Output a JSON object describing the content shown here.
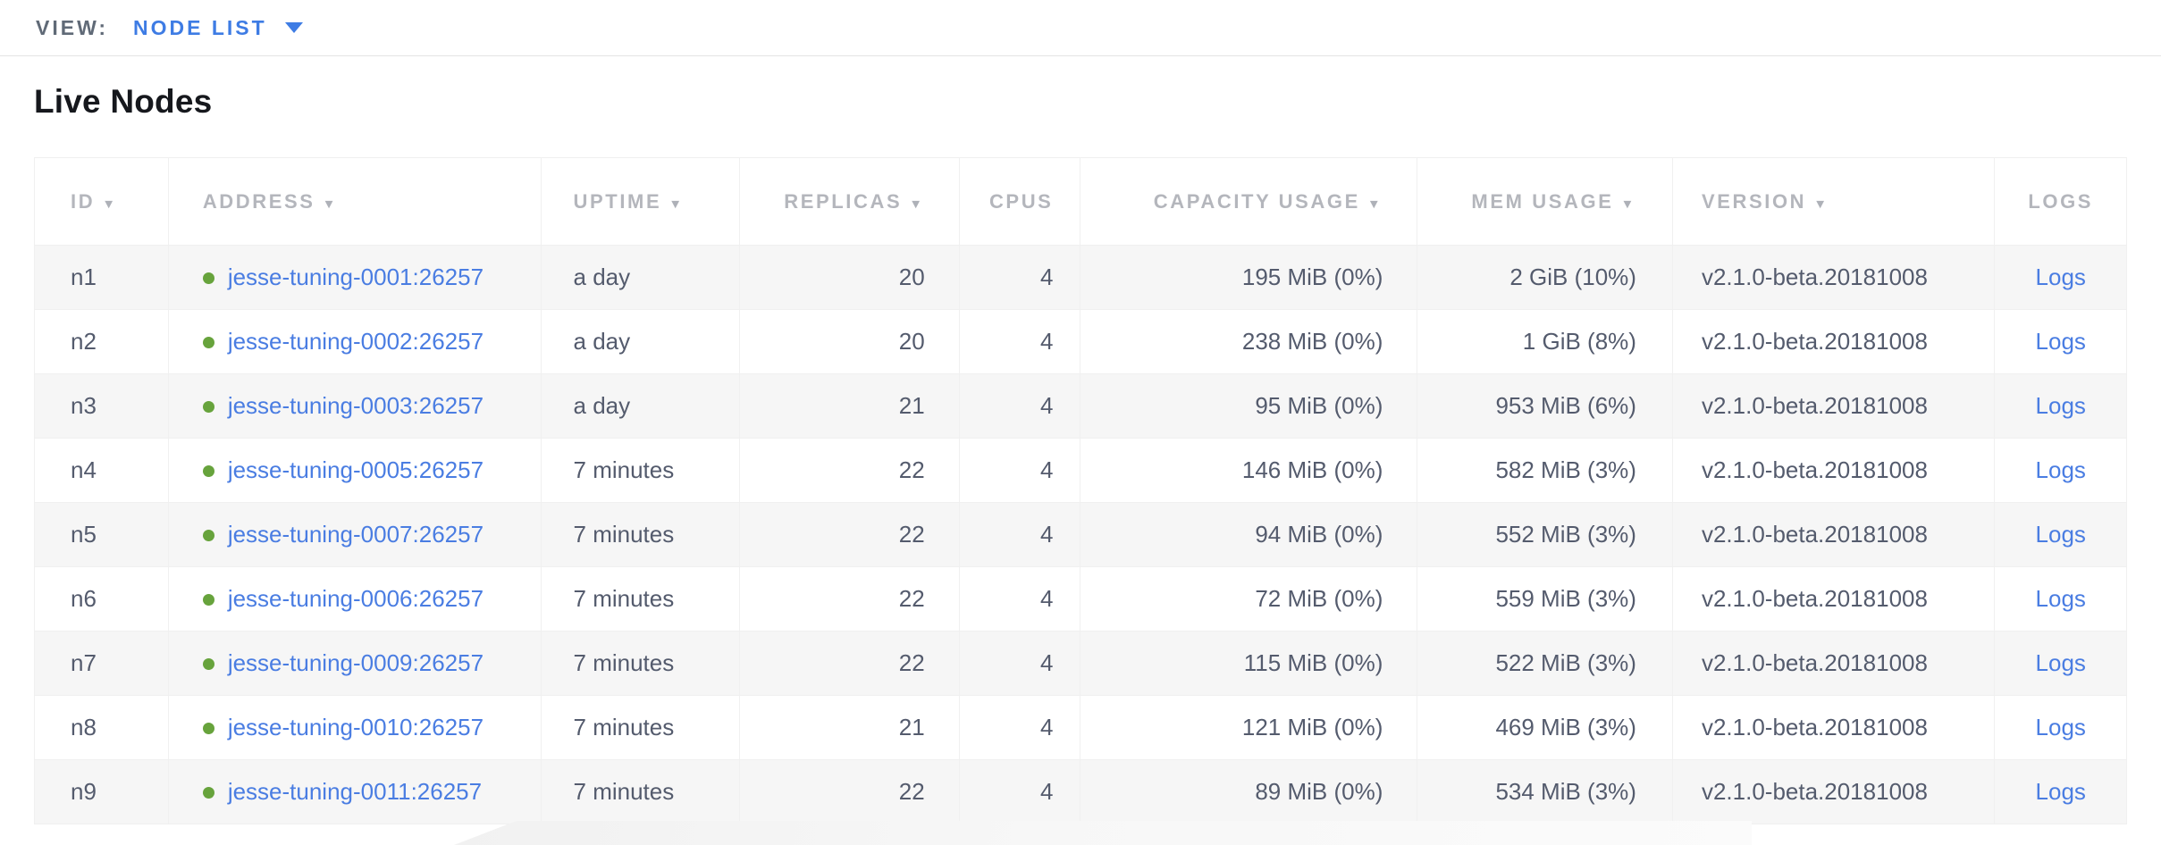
{
  "view_bar": {
    "label": "VIEW:",
    "selected_view": "NODE LIST"
  },
  "page": {
    "title": "Live Nodes"
  },
  "table": {
    "sort_arrow_icon": "▼",
    "columns": [
      {
        "key": "id",
        "label": "ID",
        "sortable": true
      },
      {
        "key": "address",
        "label": "ADDRESS",
        "sortable": true
      },
      {
        "key": "uptime",
        "label": "UPTIME",
        "sortable": true
      },
      {
        "key": "replicas",
        "label": "REPLICAS",
        "sortable": true
      },
      {
        "key": "cpus",
        "label": "CPUS",
        "sortable": false
      },
      {
        "key": "capacity_usage",
        "label": "CAPACITY USAGE",
        "sortable": true
      },
      {
        "key": "mem_usage",
        "label": "MEM USAGE",
        "sortable": true
      },
      {
        "key": "version",
        "label": "VERSION",
        "sortable": true
      },
      {
        "key": "logs",
        "label": "LOGS",
        "sortable": false
      }
    ],
    "rows": [
      {
        "id": "n1",
        "status": "live",
        "address": "jesse-tuning-0001:26257",
        "uptime": "a day",
        "replicas": "20",
        "cpus": "4",
        "capacity_usage": "195 MiB (0%)",
        "mem_usage": "2 GiB (10%)",
        "version": "v2.1.0-beta.20181008",
        "logs": "Logs"
      },
      {
        "id": "n2",
        "status": "live",
        "address": "jesse-tuning-0002:26257",
        "uptime": "a day",
        "replicas": "20",
        "cpus": "4",
        "capacity_usage": "238 MiB (0%)",
        "mem_usage": "1 GiB (8%)",
        "version": "v2.1.0-beta.20181008",
        "logs": "Logs"
      },
      {
        "id": "n3",
        "status": "live",
        "address": "jesse-tuning-0003:26257",
        "uptime": "a day",
        "replicas": "21",
        "cpus": "4",
        "capacity_usage": "95 MiB (0%)",
        "mem_usage": "953 MiB (6%)",
        "version": "v2.1.0-beta.20181008",
        "logs": "Logs"
      },
      {
        "id": "n4",
        "status": "live",
        "address": "jesse-tuning-0005:26257",
        "uptime": "7 minutes",
        "replicas": "22",
        "cpus": "4",
        "capacity_usage": "146 MiB (0%)",
        "mem_usage": "582 MiB (3%)",
        "version": "v2.1.0-beta.20181008",
        "logs": "Logs"
      },
      {
        "id": "n5",
        "status": "live",
        "address": "jesse-tuning-0007:26257",
        "uptime": "7 minutes",
        "replicas": "22",
        "cpus": "4",
        "capacity_usage": "94 MiB (0%)",
        "mem_usage": "552 MiB (3%)",
        "version": "v2.1.0-beta.20181008",
        "logs": "Logs"
      },
      {
        "id": "n6",
        "status": "live",
        "address": "jesse-tuning-0006:26257",
        "uptime": "7 minutes",
        "replicas": "22",
        "cpus": "4",
        "capacity_usage": "72 MiB (0%)",
        "mem_usage": "559 MiB (3%)",
        "version": "v2.1.0-beta.20181008",
        "logs": "Logs"
      },
      {
        "id": "n7",
        "status": "live",
        "address": "jesse-tuning-0009:26257",
        "uptime": "7 minutes",
        "replicas": "22",
        "cpus": "4",
        "capacity_usage": "115 MiB (0%)",
        "mem_usage": "522 MiB (3%)",
        "version": "v2.1.0-beta.20181008",
        "logs": "Logs"
      },
      {
        "id": "n8",
        "status": "live",
        "address": "jesse-tuning-0010:26257",
        "uptime": "7 minutes",
        "replicas": "21",
        "cpus": "4",
        "capacity_usage": "121 MiB (0%)",
        "mem_usage": "469 MiB (3%)",
        "version": "v2.1.0-beta.20181008",
        "logs": "Logs"
      },
      {
        "id": "n9",
        "status": "live",
        "address": "jesse-tuning-0011:26257",
        "uptime": "7 minutes",
        "replicas": "22",
        "cpus": "4",
        "capacity_usage": "89 MiB (0%)",
        "mem_usage": "534 MiB (3%)",
        "version": "v2.1.0-beta.20181008",
        "logs": "Logs"
      }
    ]
  },
  "colors": {
    "accent_blue": "#3e7ce4",
    "link_blue": "#4a7de2",
    "live_green": "#67a33c",
    "header_gray": "#b4b6bc",
    "cell_text": "#545b6d"
  }
}
